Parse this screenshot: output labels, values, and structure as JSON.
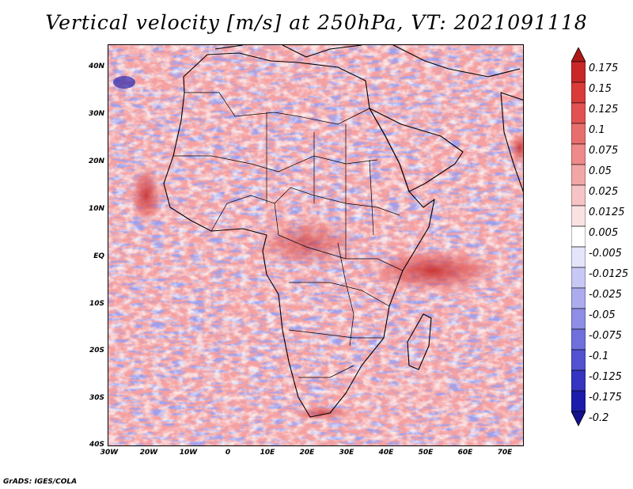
{
  "title": "Vertical velocity [m/s] at 250hPa, VT: 2021091118",
  "credit": "GrADS: IGES/COLA",
  "lat_labels": [
    "40N",
    "30N",
    "20N",
    "10N",
    "EQ",
    "10S",
    "20S",
    "30S",
    "40S"
  ],
  "lon_labels": [
    "30W",
    "20W",
    "10W",
    "0",
    "10E",
    "20E",
    "30E",
    "40E",
    "50E",
    "60E",
    "70E"
  ],
  "colorbar": {
    "labels": [
      "0.175",
      "0.15",
      "0.125",
      "0.1",
      "0.075",
      "0.05",
      "0.025",
      "0.0125",
      "0.005",
      "-0.005",
      "-0.0125",
      "-0.025",
      "-0.05",
      "-0.075",
      "-0.1",
      "-0.125",
      "-0.175",
      "-0.2"
    ],
    "colors": [
      "#b01818",
      "#c92828",
      "#d93a3a",
      "#e25252",
      "#e86e6e",
      "#ee8a8a",
      "#f2a6a6",
      "#f6c4c4",
      "#fae2e2",
      "#ffffff",
      "#e4e4fa",
      "#c8c8f4",
      "#ababee",
      "#8e8ee6",
      "#7070dc",
      "#5252d0",
      "#3434c0",
      "#1c1caa",
      "#12128e"
    ]
  },
  "legend_colors": {
    "land_outline": "#000000",
    "background": "#ffffff"
  }
}
